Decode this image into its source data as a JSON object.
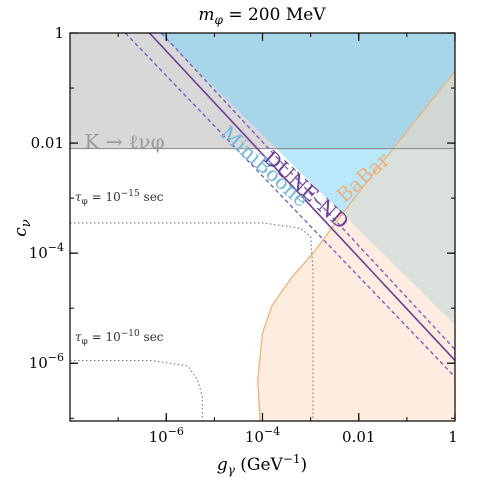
{
  "chart_data": {
    "type": "area",
    "title": "m_φ = 200 MeV",
    "title_main": "m",
    "title_sub": "φ",
    "title_rest": " = 200 MeV",
    "xlabel_main": "g",
    "xlabel_sub": "γ",
    "xlabel_rest": " (GeV",
    "xlabel_sup": "−1",
    "xlabel_close": ")",
    "ylabel_main": "c",
    "ylabel_sub": "ν",
    "x_scale": "log",
    "y_scale": "log",
    "xlim_log10": [
      -8,
      0
    ],
    "ylim_log10": [
      -7.05,
      0
    ],
    "x_ticks": [
      {
        "log10": -6,
        "base": "10",
        "exp": "−6"
      },
      {
        "log10": -4,
        "base": "10",
        "exp": "−4"
      },
      {
        "log10": -2,
        "label": "0.01"
      },
      {
        "log10": 0,
        "label": "1"
      }
    ],
    "y_ticks": [
      {
        "log10": -6,
        "base": "10",
        "exp": "−6"
      },
      {
        "log10": -4,
        "base": "10",
        "exp": "−4"
      },
      {
        "log10": -2,
        "label": "0.01"
      },
      {
        "log10": 0,
        "label": "1"
      }
    ],
    "colors": {
      "kaon": "#a9a9a9",
      "miniboone": "#7fd6f5",
      "babar": "#fbd9bf",
      "babar_edge": "#f0b27a",
      "dune": "#6f3d97",
      "dune_dashed": "#7b5fc4",
      "tau": "#777777"
    },
    "regions": {
      "kaon": {
        "label": "K → ℓνφ",
        "label_pos_log10": [
          -7.7,
          -2.1
        ],
        "ymin_log10": -2.1
      },
      "miniboone": {
        "label": "MiniBoone",
        "label_pos_log10": [
          -4.9,
          -1.85
        ],
        "boundary_log10": [
          [
            -6.15,
            0
          ],
          [
            0,
            -5.3
          ]
        ]
      },
      "babar": {
        "label": "BaBar",
        "label_pos_log10": [
          -2.3,
          -3.1
        ],
        "boundary_log10": [
          [
            -4.05,
            -7.05
          ],
          [
            -4.1,
            -6.3
          ],
          [
            -4.0,
            -5.45
          ],
          [
            -3.8,
            -4.95
          ],
          [
            -3.4,
            -4.45
          ],
          [
            -2.9,
            -3.95
          ],
          [
            -2.4,
            -3.35
          ],
          [
            -1.6,
            -2.45
          ],
          [
            -0.6,
            -1.35
          ],
          [
            0,
            -0.7
          ]
        ]
      }
    },
    "dune_nd": {
      "label": "DUNE-ND",
      "label_pos_log10": [
        -4.0,
        -2.3
      ],
      "solid_log10": [
        [
          -6.35,
          0
        ],
        [
          0,
          -5.95
        ]
      ],
      "dashed_upper_log10": [
        [
          -6.1,
          0
        ],
        [
          0,
          -5.75
        ]
      ],
      "dashed_lower_log10": [
        [
          -6.85,
          0
        ],
        [
          0,
          -6.25
        ]
      ]
    },
    "tau_curves": [
      {
        "label_base": "τ",
        "label_sub": "φ",
        "label_eq": " = ",
        "label_exp": "−15",
        "label_unit": " sec",
        "label_pos_log10": [
          -7.9,
          -3.05
        ],
        "path_log10": [
          [
            -8,
            -3.45
          ],
          [
            -5,
            -3.45
          ],
          [
            -4,
            -3.45
          ],
          [
            -3.2,
            -3.55
          ],
          [
            -3.0,
            -3.7
          ],
          [
            -2.95,
            -4.3
          ],
          [
            -2.95,
            -7.05
          ]
        ]
      },
      {
        "label_base": "τ",
        "label_sub": "φ",
        "label_eq": " = ",
        "label_exp": "−10",
        "label_unit": " sec",
        "label_pos_log10": [
          -7.9,
          -5.6
        ],
        "path_log10": [
          [
            -8,
            -5.95
          ],
          [
            -6.3,
            -5.95
          ],
          [
            -5.55,
            -6.05
          ],
          [
            -5.35,
            -6.3
          ],
          [
            -5.25,
            -6.6
          ],
          [
            -5.25,
            -7.05
          ]
        ]
      }
    ]
  }
}
